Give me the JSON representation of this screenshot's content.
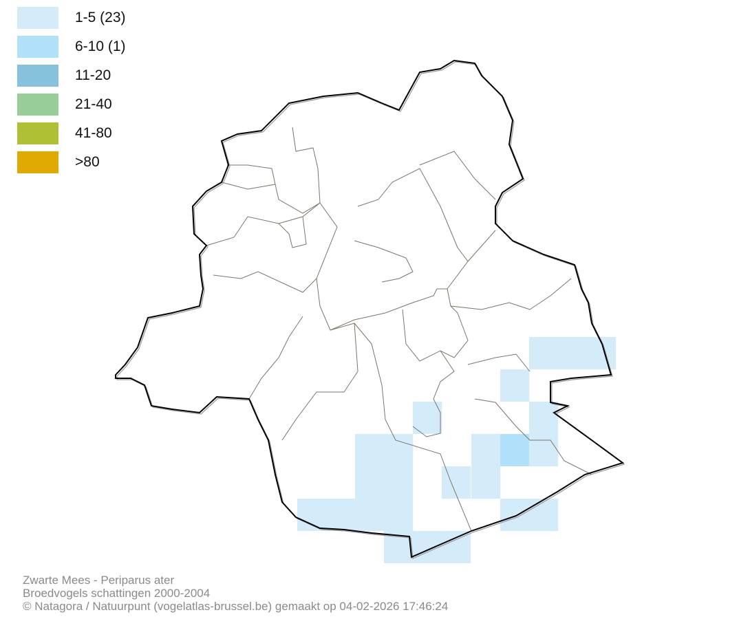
{
  "legend": [
    {
      "label": "1-5 (23)",
      "color": "#d4ebfa"
    },
    {
      "label": "6-10 (1)",
      "color": "#b1e2fa"
    },
    {
      "label": "11-20",
      "color": "#87c1de"
    },
    {
      "label": "21-40",
      "color": "#99cd97"
    },
    {
      "label": "41-80",
      "color": "#b0c034"
    },
    {
      "label": ">80",
      "color": "#e0aa00"
    }
  ],
  "colors": {
    "boundary": "#000000",
    "commune_lines": "#7d7468",
    "shadow": "#999999"
  },
  "footer": {
    "species": "Zwarte Mees - Periparus ater",
    "dataset": "Broedvogels schattingen 2000-2004",
    "credit": "© Natagora / Natuurpunt (vogelatlas-brussel.be) gemaakt op 04-02-2026 17:46:24"
  }
}
